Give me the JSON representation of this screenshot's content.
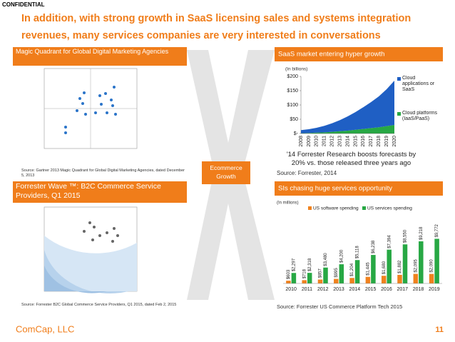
{
  "header": {
    "confidential": "CONFIDENTIAL",
    "title": [
      "In addition, with strong growth in SaaS licensing sales and systems integration",
      "revenues, many services companies are very interested in conversations"
    ]
  },
  "panels": {
    "magic_quadrant": {
      "title": "Magic Quadrant for Global Digital Marketing Agencies",
      "source": "Source: Gartner 2013 Magic Quadrant for Global Digital Marketing Agencies, dated December 5, 2013"
    },
    "forrester_wave": {
      "title": "Forrester Wave ™: B2C Commerce Service Providers, Q1 2015",
      "source": "Source: Forrester B2C Global Commerce Service Providers, Q1 2015, dated Feb 2, 2015"
    }
  },
  "center": "Ecommerce Growth",
  "chart_data": [
    {
      "type": "area",
      "title": "SaaS market entering hyper growth",
      "unit_label": "(In billions)",
      "annotation": "'14 Forrester Research boosts forecasts by 20% vs. those released three years ago",
      "source": "Source:  Forrester, 2014",
      "categories": [
        "2008",
        "2009",
        "2010",
        "2011",
        "2012",
        "2013",
        "2014",
        "2015",
        "2016",
        "2017",
        "2018",
        "2019",
        "2020"
      ],
      "series": [
        {
          "name": "Cloud applications or SaaS",
          "color": "#1f5fc4",
          "values": [
            11,
            13,
            17,
            23,
            30,
            39,
            50,
            62,
            76,
            91,
            108,
            129,
            155
          ]
        },
        {
          "name": "Cloud platforms (IaaS/PaaS)",
          "color": "#27a844",
          "values": [
            1,
            2,
            3,
            4,
            6,
            8,
            10,
            13,
            16,
            19,
            22,
            26,
            30
          ]
        }
      ],
      "stacked": true,
      "ylim": [
        0,
        200
      ],
      "yticks": [
        {
          "value": 0,
          "label": "$-"
        },
        {
          "value": 50,
          "label": "$50"
        },
        {
          "value": 100,
          "label": "$100"
        },
        {
          "value": 150,
          "label": "$150"
        },
        {
          "value": 200,
          "label": "$200"
        }
      ]
    },
    {
      "type": "bar",
      "title": "SIs chasing huge services opportunity",
      "unit_label": "(In millions)",
      "source": "Source: Forrester US Commerce Platform Tech 2015",
      "categories": [
        "2010",
        "2011",
        "2012",
        "2013",
        "2014",
        "2015",
        "2016",
        "2017",
        "2018",
        "2019"
      ],
      "series": [
        {
          "name": "US software spending",
          "color": "#f0821e",
          "values": [
            603,
            718,
            857,
            995,
            1204,
            1445,
            1680,
            1882,
            2095,
            2090
          ],
          "value_labels": [
            "$603",
            "$718",
            "$857",
            "$995",
            "$1,204",
            "$1,445",
            "$1,680",
            "$1,882",
            "$2,095",
            "$2,090"
          ]
        },
        {
          "name": "US services spending",
          "color": "#27a844",
          "values": [
            2297,
            2318,
            3480,
            4200,
            5118,
            6238,
            7394,
            8550,
            9218,
            9772
          ],
          "value_labels": [
            "$2,297",
            "$2,318",
            "$3,480",
            "$4,200",
            "$5,118",
            "$6,238",
            "$7,394",
            "$8,550",
            "$9,218",
            "$9,772"
          ]
        }
      ],
      "ylim": [
        0,
        10000
      ]
    }
  ],
  "footer": {
    "company": "ComCap, LLC",
    "page": "11"
  }
}
